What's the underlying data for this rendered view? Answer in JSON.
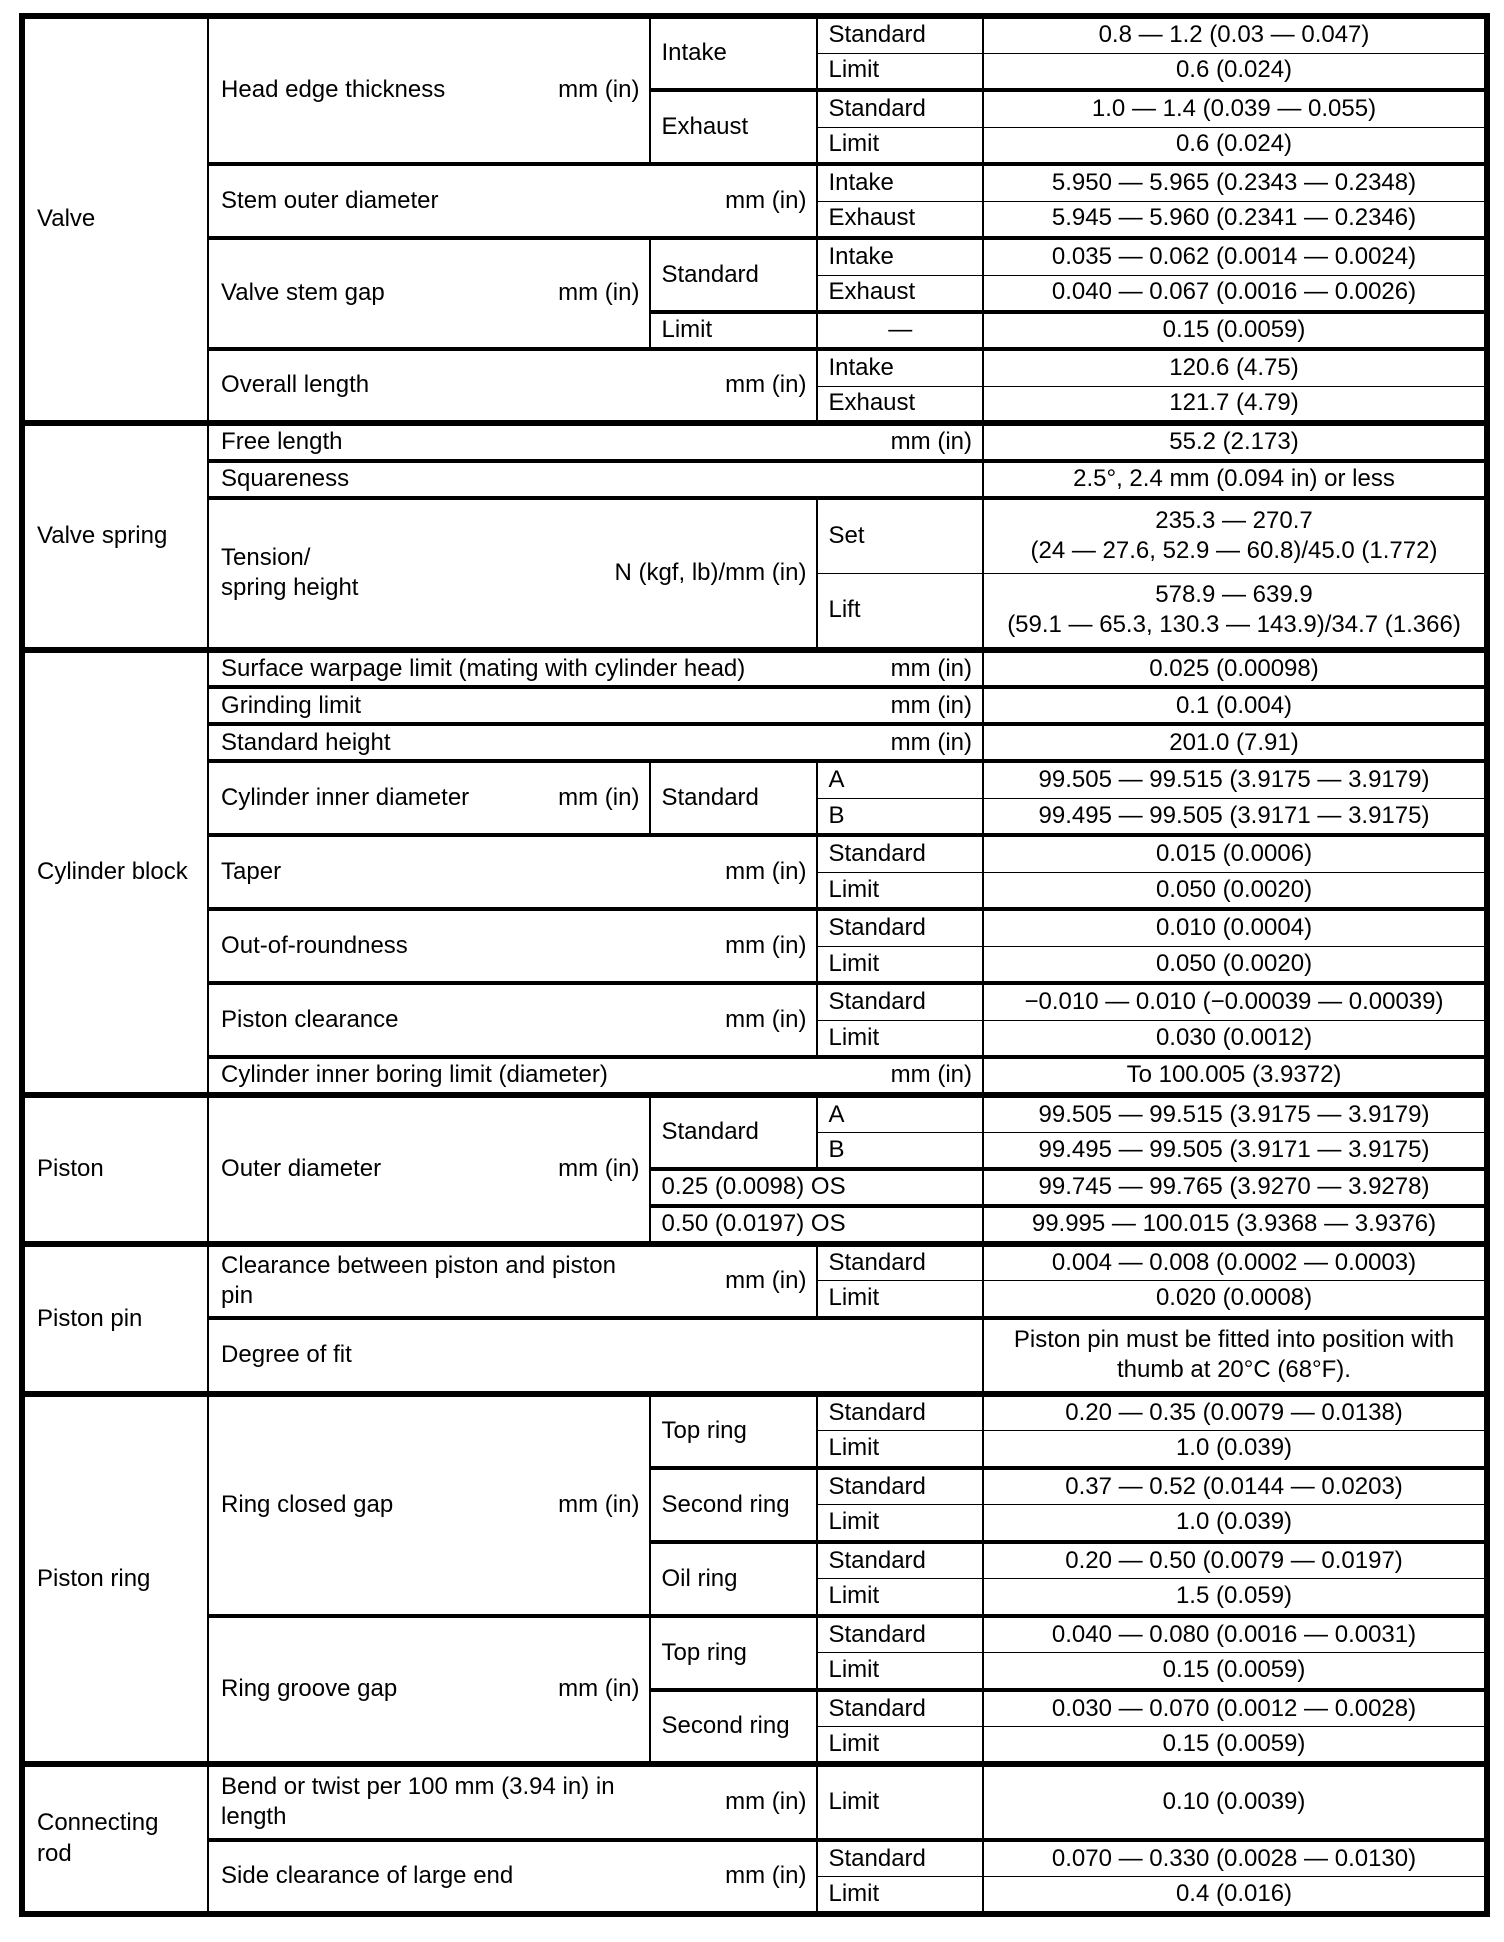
{
  "page": {
    "background": "#ffffff",
    "line_color": "#000000",
    "text_color": "#000000"
  },
  "table": {
    "col_widths": [
      "12.7%",
      "30.2%",
      "11.4%",
      "11.3%",
      "34.4%"
    ],
    "rows": [
      {
        "b": "",
        "cells": [
          {
            "t": "Valve",
            "type": "section",
            "rs": 11
          },
          {
            "t": "Head edge thickness",
            "u": "mm (in)",
            "type": "param",
            "rs": 4
          },
          {
            "t": "Intake",
            "type": "sub",
            "rs": 2
          },
          {
            "t": "Standard",
            "type": "sub"
          },
          {
            "t": "0.8 — 1.2 (0.03 — 0.047)",
            "type": "value"
          }
        ]
      },
      {
        "b": "thin",
        "cells": [
          {
            "t": "Limit",
            "type": "sub"
          },
          {
            "t": "0.6 (0.024)",
            "type": "value"
          }
        ]
      },
      {
        "b": "thick",
        "cells": [
          {
            "t": "Exhaust",
            "type": "sub",
            "rs": 2
          },
          {
            "t": "Standard",
            "type": "sub"
          },
          {
            "t": "1.0 — 1.4 (0.039 — 0.055)",
            "type": "value"
          }
        ]
      },
      {
        "b": "thin",
        "cells": [
          {
            "t": "Limit",
            "type": "sub"
          },
          {
            "t": "0.6 (0.024)",
            "type": "value"
          }
        ]
      },
      {
        "b": "thick",
        "cells": [
          {
            "t": "Stem outer diameter",
            "u": "mm (in)",
            "type": "param",
            "rs": 2,
            "cs": 2
          },
          {
            "t": "Intake",
            "type": "sub"
          },
          {
            "t": "5.950 — 5.965 (0.2343 — 0.2348)",
            "type": "value"
          }
        ]
      },
      {
        "b": "thin",
        "cells": [
          {
            "t": "Exhaust",
            "type": "sub"
          },
          {
            "t": "5.945 — 5.960 (0.2341 — 0.2346)",
            "type": "value"
          }
        ]
      },
      {
        "b": "thick",
        "cells": [
          {
            "t": "Valve stem gap",
            "u": "mm (in)",
            "type": "param",
            "rs": 3
          },
          {
            "t": "Standard",
            "type": "sub",
            "rs": 2
          },
          {
            "t": "Intake",
            "type": "sub"
          },
          {
            "t": "0.035 — 0.062 (0.0014 — 0.0024)",
            "type": "value"
          }
        ]
      },
      {
        "b": "thin",
        "cells": [
          {
            "t": "Exhaust",
            "type": "sub"
          },
          {
            "t": "0.040 — 0.067 (0.0016 — 0.0026)",
            "type": "value"
          }
        ]
      },
      {
        "b": "thick",
        "cells": [
          {
            "t": "Limit",
            "type": "sub"
          },
          {
            "t": "—",
            "type": "sub",
            "align": "center"
          },
          {
            "t": "0.15 (0.0059)",
            "type": "value"
          }
        ]
      },
      {
        "b": "thick",
        "cells": [
          {
            "t": "Overall length",
            "u": "mm (in)",
            "type": "param",
            "rs": 2,
            "cs": 2
          },
          {
            "t": "Intake",
            "type": "sub"
          },
          {
            "t": "120.6 (4.75)",
            "type": "value"
          }
        ]
      },
      {
        "b": "thin",
        "cells": [
          {
            "t": "Exhaust",
            "type": "sub"
          },
          {
            "t": "121.7 (4.79)",
            "type": "value"
          }
        ]
      },
      {
        "b": "section",
        "cells": [
          {
            "t": "Valve spring",
            "type": "section",
            "rs": 4
          },
          {
            "t": "Free length",
            "u": "mm (in)",
            "type": "param",
            "cs": 3
          },
          {
            "t": "55.2 (2.173)",
            "type": "value"
          }
        ]
      },
      {
        "b": "thick",
        "cells": [
          {
            "t": "Squareness",
            "type": "param",
            "cs": 3
          },
          {
            "t": "2.5°, 2.4 mm (0.094 in) or less",
            "type": "value"
          }
        ]
      },
      {
        "b": "thick",
        "tall": true,
        "cells": [
          {
            "t": "Tension/\nspring height",
            "u": "N (kgf, lb)/mm (in)",
            "type": "param",
            "rs": 2,
            "cs": 2
          },
          {
            "t": "Set",
            "type": "sub"
          },
          {
            "t": "235.3 — 270.7\n(24 — 27.6, 52.9 — 60.8)/45.0 (1.772)",
            "type": "value"
          }
        ]
      },
      {
        "b": "thin",
        "tall": true,
        "cells": [
          {
            "t": "Lift",
            "type": "sub"
          },
          {
            "t": "578.9 — 639.9\n(59.1 — 65.3, 130.3 — 143.9)/34.7 (1.366)",
            "type": "value"
          }
        ]
      },
      {
        "b": "section",
        "cells": [
          {
            "t": "Cylinder block",
            "type": "section",
            "rs": 12
          },
          {
            "t": "Surface warpage limit (mating with cylinder head)",
            "u": "mm (in)",
            "type": "param",
            "cs": 3
          },
          {
            "t": "0.025 (0.00098)",
            "type": "value"
          }
        ]
      },
      {
        "b": "thick",
        "cells": [
          {
            "t": "Grinding limit",
            "u": "mm (in)",
            "type": "param",
            "cs": 3
          },
          {
            "t": "0.1 (0.004)",
            "type": "value"
          }
        ]
      },
      {
        "b": "thick",
        "cells": [
          {
            "t": "Standard height",
            "u": "mm (in)",
            "type": "param",
            "cs": 3
          },
          {
            "t": "201.0 (7.91)",
            "type": "value"
          }
        ]
      },
      {
        "b": "thick",
        "cells": [
          {
            "t": "Cylinder inner diameter",
            "u": "mm (in)",
            "type": "param",
            "rs": 2
          },
          {
            "t": "Standard",
            "type": "sub",
            "rs": 2
          },
          {
            "t": "A",
            "type": "sub"
          },
          {
            "t": "99.505 — 99.515 (3.9175 — 3.9179)",
            "type": "value"
          }
        ]
      },
      {
        "b": "thin",
        "cells": [
          {
            "t": "B",
            "type": "sub"
          },
          {
            "t": "99.495 — 99.505 (3.9171 — 3.9175)",
            "type": "value"
          }
        ]
      },
      {
        "b": "thick",
        "cells": [
          {
            "t": "Taper",
            "u": "mm (in)",
            "type": "param",
            "rs": 2,
            "cs": 2
          },
          {
            "t": "Standard",
            "type": "sub"
          },
          {
            "t": "0.015 (0.0006)",
            "type": "value"
          }
        ]
      },
      {
        "b": "thin",
        "cells": [
          {
            "t": "Limit",
            "type": "sub"
          },
          {
            "t": "0.050 (0.0020)",
            "type": "value"
          }
        ]
      },
      {
        "b": "thick",
        "cells": [
          {
            "t": "Out-of-roundness",
            "u": "mm (in)",
            "type": "param",
            "rs": 2,
            "cs": 2
          },
          {
            "t": "Standard",
            "type": "sub"
          },
          {
            "t": "0.010 (0.0004)",
            "type": "value"
          }
        ]
      },
      {
        "b": "thin",
        "cells": [
          {
            "t": "Limit",
            "type": "sub"
          },
          {
            "t": "0.050 (0.0020)",
            "type": "value"
          }
        ]
      },
      {
        "b": "thick",
        "cells": [
          {
            "t": "Piston clearance",
            "u": "mm (in)",
            "type": "param",
            "rs": 2,
            "cs": 2
          },
          {
            "t": "Standard",
            "type": "sub"
          },
          {
            "t": "−0.010 — 0.010 (−0.00039 — 0.00039)",
            "type": "value"
          }
        ]
      },
      {
        "b": "thin",
        "cells": [
          {
            "t": "Limit",
            "type": "sub"
          },
          {
            "t": "0.030 (0.0012)",
            "type": "value"
          }
        ]
      },
      {
        "b": "thick",
        "cells": [
          {
            "t": "Cylinder inner boring limit (diameter)",
            "u": "mm (in)",
            "type": "param",
            "cs": 3
          },
          {
            "t": "To 100.005 (3.9372)",
            "type": "value"
          }
        ]
      },
      {
        "b": "section",
        "cells": [
          {
            "t": "Piston",
            "type": "section",
            "rs": 4
          },
          {
            "t": "Outer diameter",
            "u": "mm (in)",
            "type": "param",
            "rs": 4
          },
          {
            "t": "Standard",
            "type": "sub",
            "rs": 2
          },
          {
            "t": "A",
            "type": "sub"
          },
          {
            "t": "99.505 — 99.515 (3.9175 — 3.9179)",
            "type": "value"
          }
        ]
      },
      {
        "b": "thin",
        "cells": [
          {
            "t": "B",
            "type": "sub"
          },
          {
            "t": "99.495 — 99.505 (3.9171 — 3.9175)",
            "type": "value"
          }
        ]
      },
      {
        "b": "thick",
        "cells": [
          {
            "t": "0.25 (0.0098) OS",
            "type": "sub",
            "cs": 2
          },
          {
            "t": "99.745 — 99.765 (3.9270 — 3.9278)",
            "type": "value"
          }
        ]
      },
      {
        "b": "thick",
        "cells": [
          {
            "t": "0.50 (0.0197) OS",
            "type": "sub",
            "cs": 2
          },
          {
            "t": "99.995 — 100.015 (3.9368 — 3.9376)",
            "type": "value"
          }
        ]
      },
      {
        "b": "section",
        "cells": [
          {
            "t": "Piston pin",
            "type": "section",
            "rs": 3
          },
          {
            "t": "Clearance between piston and piston\npin",
            "u": "mm (in)",
            "type": "param",
            "rs": 2,
            "cs": 2
          },
          {
            "t": "Standard",
            "type": "sub"
          },
          {
            "t": "0.004 — 0.008 (0.0002 — 0.0003)",
            "type": "value"
          }
        ]
      },
      {
        "b": "thin",
        "cells": [
          {
            "t": "Limit",
            "type": "sub"
          },
          {
            "t": "0.020 (0.0008)",
            "type": "value"
          }
        ]
      },
      {
        "b": "thick",
        "tall": true,
        "cells": [
          {
            "t": "Degree of fit",
            "type": "param",
            "cs": 3
          },
          {
            "t": "Piston pin must be fitted into position with\nthumb at 20°C (68°F).",
            "type": "value"
          }
        ]
      },
      {
        "b": "section",
        "cells": [
          {
            "t": "Piston ring",
            "type": "section",
            "rs": 10
          },
          {
            "t": "Ring closed gap",
            "u": "mm (in)",
            "type": "param",
            "rs": 6
          },
          {
            "t": "Top ring",
            "type": "sub",
            "rs": 2
          },
          {
            "t": "Standard",
            "type": "sub"
          },
          {
            "t": "0.20 — 0.35 (0.0079 — 0.0138)",
            "type": "value"
          }
        ]
      },
      {
        "b": "thin",
        "cells": [
          {
            "t": "Limit",
            "type": "sub"
          },
          {
            "t": "1.0 (0.039)",
            "type": "value"
          }
        ]
      },
      {
        "b": "thick",
        "cells": [
          {
            "t": "Second ring",
            "type": "sub",
            "rs": 2
          },
          {
            "t": "Standard",
            "type": "sub"
          },
          {
            "t": "0.37 — 0.52 (0.0144 — 0.0203)",
            "type": "value"
          }
        ]
      },
      {
        "b": "thin",
        "cells": [
          {
            "t": "Limit",
            "type": "sub"
          },
          {
            "t": "1.0 (0.039)",
            "type": "value"
          }
        ]
      },
      {
        "b": "thick",
        "cells": [
          {
            "t": "Oil ring",
            "type": "sub",
            "rs": 2
          },
          {
            "t": "Standard",
            "type": "sub"
          },
          {
            "t": "0.20 — 0.50 (0.0079 — 0.0197)",
            "type": "value"
          }
        ]
      },
      {
        "b": "thin",
        "cells": [
          {
            "t": "Limit",
            "type": "sub"
          },
          {
            "t": "1.5 (0.059)",
            "type": "value"
          }
        ]
      },
      {
        "b": "thick",
        "cells": [
          {
            "t": "Ring groove gap",
            "u": "mm (in)",
            "type": "param",
            "rs": 4
          },
          {
            "t": "Top ring",
            "type": "sub",
            "rs": 2
          },
          {
            "t": "Standard",
            "type": "sub"
          },
          {
            "t": "0.040 — 0.080 (0.0016 — 0.0031)",
            "type": "value"
          }
        ]
      },
      {
        "b": "thin",
        "cells": [
          {
            "t": "Limit",
            "type": "sub"
          },
          {
            "t": "0.15 (0.0059)",
            "type": "value"
          }
        ]
      },
      {
        "b": "thick",
        "cells": [
          {
            "t": "Second ring",
            "type": "sub",
            "rs": 2
          },
          {
            "t": "Standard",
            "type": "sub"
          },
          {
            "t": "0.030 — 0.070 (0.0012 — 0.0028)",
            "type": "value"
          }
        ]
      },
      {
        "b": "thin",
        "cells": [
          {
            "t": "Limit",
            "type": "sub"
          },
          {
            "t": "0.15 (0.0059)",
            "type": "value"
          }
        ]
      },
      {
        "b": "section",
        "tall": true,
        "cells": [
          {
            "t": "Connecting\nrod",
            "type": "section",
            "rs": 3
          },
          {
            "t": "Bend or twist per 100 mm (3.94 in) in\nlength",
            "u": "mm (in)",
            "type": "param",
            "cs": 2
          },
          {
            "t": "Limit",
            "type": "sub"
          },
          {
            "t": "0.10 (0.0039)",
            "type": "value"
          }
        ]
      },
      {
        "b": "thick",
        "cells": [
          {
            "t": "Side clearance of large end",
            "u": "mm (in)",
            "type": "param",
            "rs": 2,
            "cs": 2
          },
          {
            "t": "Standard",
            "type": "sub"
          },
          {
            "t": "0.070 — 0.330 (0.0028 — 0.0130)",
            "type": "value"
          }
        ]
      },
      {
        "b": "thin",
        "cells": [
          {
            "t": "Limit",
            "type": "sub"
          },
          {
            "t": "0.4 (0.016)",
            "type": "value"
          }
        ]
      }
    ]
  }
}
